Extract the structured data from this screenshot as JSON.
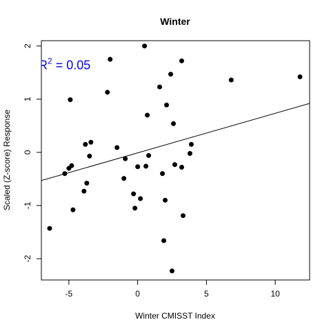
{
  "chart_data": {
    "type": "scatter",
    "title": "Winter",
    "xlabel": "Winter CMISST Index",
    "ylabel": "Scaled (Z-score) Response",
    "xlim": [
      -7.0,
      12.5
    ],
    "ylim": [
      -2.4,
      2.1
    ],
    "x_ticks": [
      -5,
      0,
      5,
      10
    ],
    "x_tick_labels": [
      "-5",
      "0",
      "5",
      "10"
    ],
    "y_ticks": [
      -2,
      -1,
      0,
      1,
      2
    ],
    "y_tick_labels": [
      "-2",
      "-1",
      "0",
      "1",
      "2"
    ],
    "grid": false,
    "point_color": "#000000",
    "line_color": "#000000",
    "annotation_color": "#0000ff",
    "annotation": {
      "prefix": "R",
      "superscript": "2",
      "text": " = 0.05",
      "x": -7.2,
      "y": 1.65
    },
    "regression": {
      "x": [
        -7.0,
        12.5
      ],
      "y": [
        -0.53,
        0.92
      ]
    },
    "points": [
      {
        "x": -6.4,
        "y": -1.43
      },
      {
        "x": -5.3,
        "y": -0.4
      },
      {
        "x": -5.0,
        "y": -0.3
      },
      {
        "x": -4.8,
        "y": -0.25
      },
      {
        "x": -4.9,
        "y": 0.99
      },
      {
        "x": -4.7,
        "y": -1.08
      },
      {
        "x": -3.9,
        "y": -0.73
      },
      {
        "x": -3.8,
        "y": 0.15
      },
      {
        "x": -3.7,
        "y": -0.58
      },
      {
        "x": -3.5,
        "y": -0.07
      },
      {
        "x": -3.4,
        "y": 0.19
      },
      {
        "x": -2.2,
        "y": 1.13
      },
      {
        "x": -2.0,
        "y": 1.75
      },
      {
        "x": -1.5,
        "y": 0.09
      },
      {
        "x": -1.0,
        "y": -0.49
      },
      {
        "x": -0.9,
        "y": -0.12
      },
      {
        "x": -0.3,
        "y": -0.78
      },
      {
        "x": -0.2,
        "y": -1.05
      },
      {
        "x": 0.0,
        "y": -0.27
      },
      {
        "x": 0.2,
        "y": -0.87
      },
      {
        "x": 0.5,
        "y": 2.0
      },
      {
        "x": 0.6,
        "y": -0.26
      },
      {
        "x": 0.7,
        "y": 0.7
      },
      {
        "x": 0.8,
        "y": -0.06
      },
      {
        "x": 1.6,
        "y": 1.23
      },
      {
        "x": 1.8,
        "y": -0.4
      },
      {
        "x": 1.9,
        "y": -1.66
      },
      {
        "x": 2.0,
        "y": -0.9
      },
      {
        "x": 2.1,
        "y": 0.89
      },
      {
        "x": 2.4,
        "y": 1.47
      },
      {
        "x": 2.5,
        "y": -2.23
      },
      {
        "x": 2.6,
        "y": 0.54
      },
      {
        "x": 2.7,
        "y": -0.23
      },
      {
        "x": 3.2,
        "y": 1.72
      },
      {
        "x": 3.2,
        "y": -0.28
      },
      {
        "x": 3.3,
        "y": -1.19
      },
      {
        "x": 3.8,
        "y": -0.02
      },
      {
        "x": 3.9,
        "y": 0.15
      },
      {
        "x": 6.8,
        "y": 1.36
      },
      {
        "x": 11.8,
        "y": 1.42
      }
    ]
  }
}
